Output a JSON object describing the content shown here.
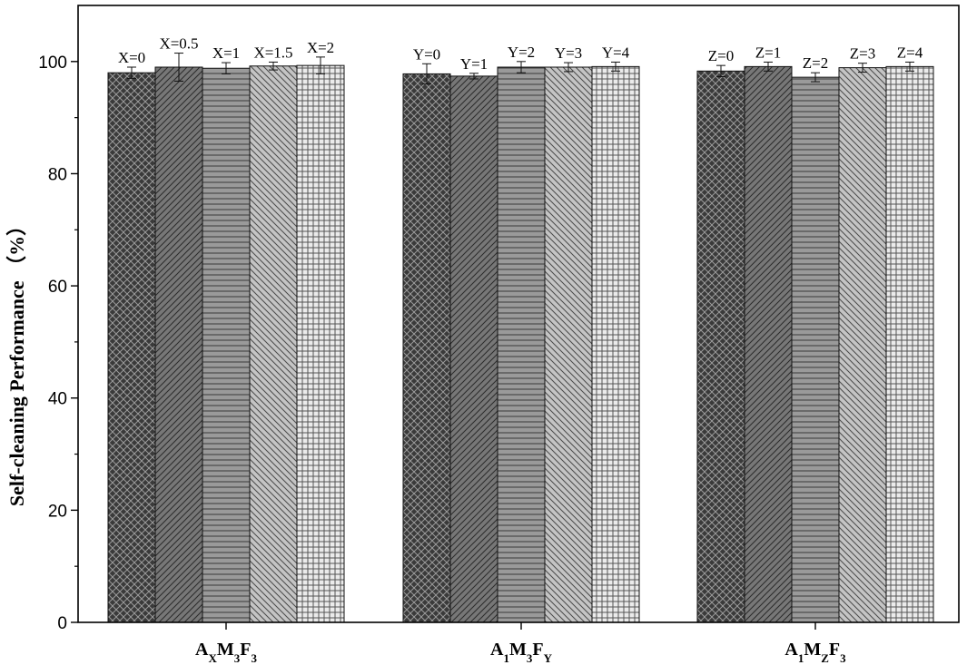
{
  "chart_data": {
    "type": "bar",
    "ylabel": "Self-cleaning Performance （%）",
    "ylim": [
      0,
      110
    ],
    "yticks": [
      0,
      20,
      40,
      60,
      80,
      100
    ],
    "grid": false,
    "groups": [
      {
        "label": [
          {
            "text": "A",
            "sub": false
          },
          {
            "text": "X",
            "sub": true
          },
          {
            "text": "M",
            "sub": false
          },
          {
            "text": "3",
            "sub": true
          },
          {
            "text": "F",
            "sub": false
          },
          {
            "text": "3",
            "sub": true
          }
        ],
        "bars": [
          {
            "label": "X=0",
            "value": 98.0,
            "error": 1.0,
            "pattern": "crosshatch"
          },
          {
            "label": "X=0.5",
            "value": 99.0,
            "error": 2.5,
            "pattern": "diag-forward"
          },
          {
            "label": "X=1",
            "value": 98.8,
            "error": 1.0,
            "pattern": "horizontal"
          },
          {
            "label": "X=1.5",
            "value": 99.2,
            "error": 0.7,
            "pattern": "diag-back"
          },
          {
            "label": "X=2",
            "value": 99.3,
            "error": 1.5,
            "pattern": "grid"
          }
        ]
      },
      {
        "label": [
          {
            "text": "A",
            "sub": false
          },
          {
            "text": "1",
            "sub": true
          },
          {
            "text": "M",
            "sub": false
          },
          {
            "text": "3",
            "sub": true
          },
          {
            "text": "F",
            "sub": false
          },
          {
            "text": "Y",
            "sub": true
          }
        ],
        "bars": [
          {
            "label": "Y=0",
            "value": 97.8,
            "error": 1.8,
            "pattern": "crosshatch"
          },
          {
            "label": "Y=1",
            "value": 97.4,
            "error": 0.5,
            "pattern": "diag-forward"
          },
          {
            "label": "Y=2",
            "value": 99.0,
            "error": 1.0,
            "pattern": "horizontal"
          },
          {
            "label": "Y=3",
            "value": 99.0,
            "error": 0.8,
            "pattern": "diag-back"
          },
          {
            "label": "Y=4",
            "value": 99.1,
            "error": 0.8,
            "pattern": "grid"
          }
        ]
      },
      {
        "label": [
          {
            "text": "A",
            "sub": false
          },
          {
            "text": "1",
            "sub": true
          },
          {
            "text": "M",
            "sub": false
          },
          {
            "text": "Z",
            "sub": true
          },
          {
            "text": "F",
            "sub": false
          },
          {
            "text": "3",
            "sub": true
          }
        ],
        "bars": [
          {
            "label": "Z=0",
            "value": 98.3,
            "error": 1.0,
            "pattern": "crosshatch"
          },
          {
            "label": "Z=1",
            "value": 99.1,
            "error": 0.8,
            "pattern": "diag-forward"
          },
          {
            "label": "Z=2",
            "value": 97.2,
            "error": 0.8,
            "pattern": "horizontal"
          },
          {
            "label": "Z=3",
            "value": 98.9,
            "error": 0.8,
            "pattern": "diag-back"
          },
          {
            "label": "Z=4",
            "value": 99.1,
            "error": 0.8,
            "pattern": "grid"
          }
        ]
      }
    ],
    "patterns": {
      "crosshatch": {
        "fill": "#3a3a3a",
        "stroke": "#9a9a9a"
      },
      "diag-forward": {
        "fill": "#777777",
        "stroke": "#2a2a2a"
      },
      "horizontal": {
        "fill": "#9a9a9a",
        "stroke": "#3a3a3a"
      },
      "diag-back": {
        "fill": "#c4c4c4",
        "stroke": "#4a4a4a"
      },
      "grid": {
        "fill": "#ebebeb",
        "stroke": "#555555"
      }
    }
  }
}
